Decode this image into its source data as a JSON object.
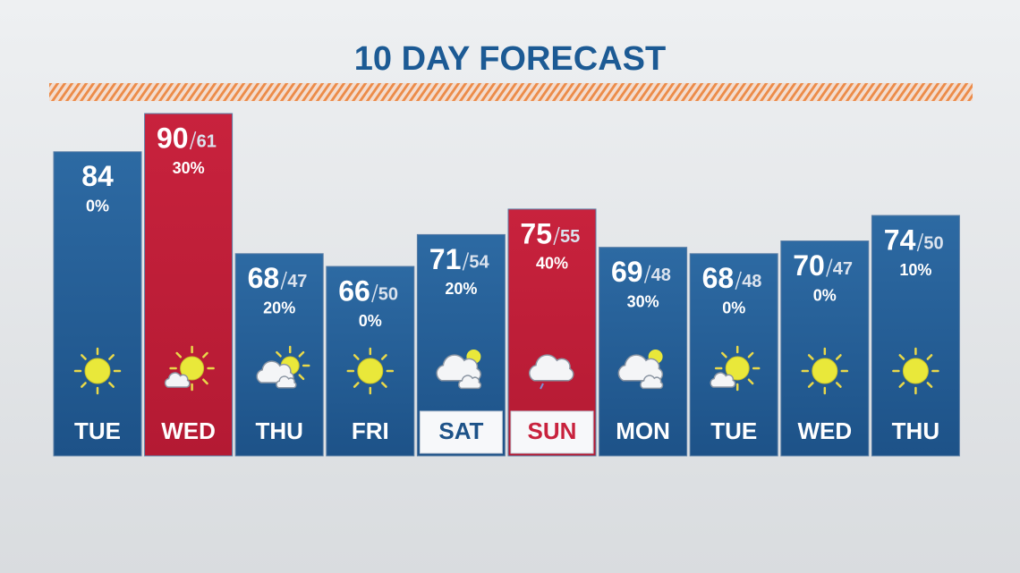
{
  "title": "10 DAY FORECAST",
  "days": [
    {
      "day": "TUE",
      "high": 84,
      "low": null,
      "precip": "0%",
      "icon": "sun",
      "color": "blue",
      "boxed": false
    },
    {
      "day": "WED",
      "high": 90,
      "low": 61,
      "precip": "30%",
      "icon": "sun-cloud",
      "color": "red",
      "boxed": false
    },
    {
      "day": "THU",
      "high": 68,
      "low": 47,
      "precip": "20%",
      "icon": "cloud-sun",
      "color": "blue",
      "boxed": false
    },
    {
      "day": "FRI",
      "high": 66,
      "low": 50,
      "precip": "0%",
      "icon": "sun",
      "color": "blue",
      "boxed": false
    },
    {
      "day": "SAT",
      "high": 71,
      "low": 54,
      "precip": "20%",
      "icon": "cloud",
      "color": "blue",
      "boxed": true
    },
    {
      "day": "SUN",
      "high": 75,
      "low": 55,
      "precip": "40%",
      "icon": "cloud-rain",
      "color": "red",
      "boxed": true
    },
    {
      "day": "MON",
      "high": 69,
      "low": 48,
      "precip": "30%",
      "icon": "cloud",
      "color": "blue",
      "boxed": false
    },
    {
      "day": "TUE",
      "high": 68,
      "low": 48,
      "precip": "0%",
      "icon": "sun-cloud",
      "color": "blue",
      "boxed": false
    },
    {
      "day": "WED",
      "high": 70,
      "low": 47,
      "precip": "0%",
      "icon": "sun",
      "color": "blue",
      "boxed": false
    },
    {
      "day": "THU",
      "high": 74,
      "low": 50,
      "precip": "10%",
      "icon": "sun",
      "color": "blue",
      "boxed": false
    }
  ]
}
